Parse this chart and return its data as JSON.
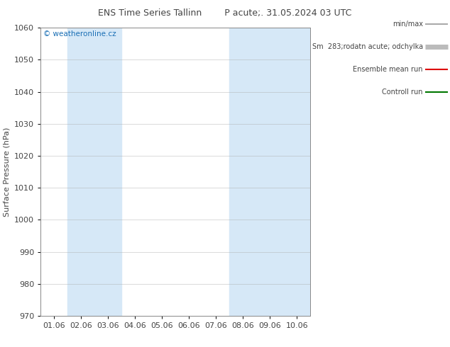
{
  "title": "ENS Time Series Tallinn        P acute;. 31.05.2024 03 UTC",
  "ylabel": "Surface Pressure (hPa)",
  "ylim": [
    970,
    1060
  ],
  "yticks": [
    970,
    980,
    990,
    1000,
    1010,
    1020,
    1030,
    1040,
    1050,
    1060
  ],
  "x_labels": [
    "01.06",
    "02.06",
    "03.06",
    "04.06",
    "05.06",
    "06.06",
    "07.06",
    "08.06",
    "09.06",
    "10.06"
  ],
  "n_days": 10,
  "band_color": "#d6e8f7",
  "bg_color": "#ffffff",
  "watermark": "© weatheronline.cz",
  "watermark_color": "#1a6fb5",
  "legend_entries": [
    {
      "label": "min/max",
      "color": "#aaaaaa",
      "lw": 1.5
    },
    {
      "label": "Sm  283;rodatn acute; odchylka",
      "color": "#bbbbbb",
      "lw": 5
    },
    {
      "label": "Ensemble mean run",
      "color": "#dd0000",
      "lw": 1.5
    },
    {
      "label": "Controll run",
      "color": "#007700",
      "lw": 1.5
    }
  ],
  "band_indices": [
    1,
    2,
    7,
    8,
    9
  ],
  "grid_color": "#aaaaaa",
  "tick_color": "#444444",
  "title_color": "#444444",
  "spine_color": "#888888"
}
